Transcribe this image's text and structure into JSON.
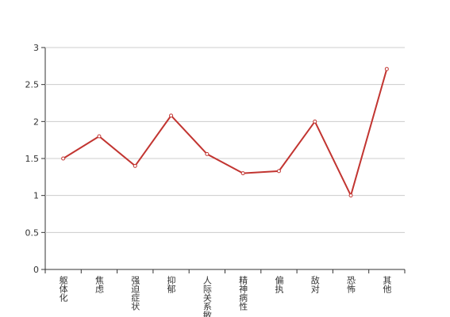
{
  "chart_data": {
    "type": "line",
    "categories": [
      "躯体化",
      "焦虑",
      "强迫症状",
      "抑郁",
      "人际关系敏感",
      "精神病性",
      "偏执",
      "敌对",
      "恐怖",
      "其他"
    ],
    "values": [
      1.5,
      1.8,
      1.4,
      2.08,
      1.56,
      1.3,
      1.33,
      2.0,
      1.0,
      2.71
    ],
    "color": "#c23531",
    "ylim": [
      0,
      3
    ],
    "yticks": [
      0,
      0.5,
      1,
      1.5,
      2,
      2.5,
      3
    ],
    "grid": true
  }
}
